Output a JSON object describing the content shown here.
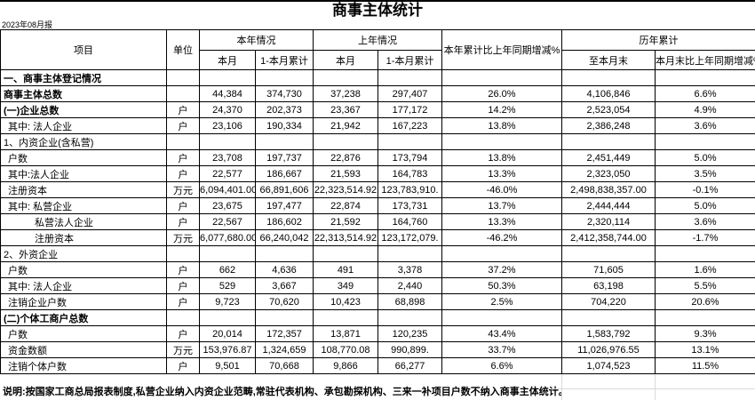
{
  "page": {
    "title": "商事主体统计",
    "period": "2023年08月报",
    "note": "说明:按国家工商总局报表制度,私营企业纳入内资企业范畴,常驻代表机构、承包勘探机构、三来一补项目户数不纳入商事主体统计。"
  },
  "colors": {
    "border": "#000000",
    "faint_grid": "#d9d9d9",
    "background": "#ffffff",
    "text": "#000000"
  },
  "table": {
    "header": {
      "item": "项目",
      "unit": "单位",
      "group_this_year": "本年情况",
      "group_last_year": "上年情况",
      "yoy_change": "本年累计比上年同期增减%",
      "group_history": "历年累计",
      "this_month": "本月",
      "cum_to_month": "1-本月累计",
      "to_month_end": "至本月末",
      "month_end_yoy": "本月末比上年同期增减%"
    },
    "rows": [
      {
        "label": "一、商事主体登记情况",
        "bold": true,
        "indent": 0,
        "unit": "",
        "values": [
          "",
          "",
          "",
          "",
          "",
          "",
          ""
        ]
      },
      {
        "label": "商事主体总数",
        "bold": true,
        "indent": 0,
        "unit": "",
        "values": [
          "44,384",
          "374,730",
          "37,238",
          "297,407",
          "26.0%",
          "4,106,846",
          "6.6%"
        ]
      },
      {
        "label": "(一)企业总数",
        "bold": true,
        "indent": 0,
        "unit": "户",
        "values": [
          "24,370",
          "202,373",
          "23,367",
          "177,172",
          "14.2%",
          "2,523,054",
          "4.9%"
        ]
      },
      {
        "label": "其中: 法人企业",
        "bold": false,
        "indent": 1,
        "unit": "户",
        "values": [
          "23,106",
          "190,334",
          "21,942",
          "167,223",
          "13.8%",
          "2,386,248",
          "3.6%"
        ]
      },
      {
        "label": "1、内资企业(含私营)",
        "bold": false,
        "indent": 0,
        "unit": "",
        "values": [
          "",
          "",
          "",
          "",
          "",
          "",
          ""
        ]
      },
      {
        "label": "户数",
        "bold": false,
        "indent": 1,
        "unit": "户",
        "values": [
          "23,708",
          "197,737",
          "22,876",
          "173,794",
          "13.8%",
          "2,451,449",
          "5.0%"
        ]
      },
      {
        "label": "其中:法人企业",
        "bold": false,
        "indent": 1,
        "unit": "户",
        "values": [
          "22,577",
          "186,667",
          "21,593",
          "164,783",
          "13.3%",
          "2,323,050",
          "3.5%"
        ]
      },
      {
        "label": "注册资本",
        "bold": false,
        "indent": 1,
        "unit": "万元",
        "values": [
          "6,094,401.00",
          "66,891,606",
          "22,323,514.92",
          "123,783,910.",
          "-46.0%",
          "2,498,838,357.00",
          "-0.1%"
        ]
      },
      {
        "label": "其中: 私营企业",
        "bold": false,
        "indent": 1,
        "unit": "户",
        "values": [
          "23,675",
          "197,477",
          "22,874",
          "173,731",
          "13.7%",
          "2,444,444",
          "5.0%"
        ]
      },
      {
        "label": "私营法人企业",
        "bold": false,
        "indent": 2,
        "unit": "户",
        "values": [
          "22,567",
          "186,602",
          "21,592",
          "164,760",
          "13.3%",
          "2,320,114",
          "3.6%"
        ]
      },
      {
        "label": "注册资本",
        "bold": false,
        "indent": 2,
        "unit": "万元",
        "values": [
          "6,077,680.00",
          "66,240,042",
          "22,313,514.92",
          "123,172,079.",
          "-46.2%",
          "2,412,358,744.00",
          "-1.7%"
        ]
      },
      {
        "label": "2、外资企业",
        "bold": false,
        "indent": 0,
        "unit": "",
        "values": [
          "",
          "",
          "",
          "",
          "",
          "",
          ""
        ]
      },
      {
        "label": "户数",
        "bold": false,
        "indent": 1,
        "unit": "户",
        "values": [
          "662",
          "4,636",
          "491",
          "3,378",
          "37.2%",
          "71,605",
          "1.6%"
        ]
      },
      {
        "label": "其中: 法人企业",
        "bold": false,
        "indent": 1,
        "unit": "户",
        "values": [
          "529",
          "3,667",
          "349",
          "2,440",
          "50.3%",
          "63,198",
          "5.5%"
        ]
      },
      {
        "label": "注销企业户数",
        "bold": false,
        "indent": 1,
        "unit": "户",
        "values": [
          "9,723",
          "70,620",
          "10,423",
          "68,898",
          "2.5%",
          "704,220",
          "20.6%"
        ]
      },
      {
        "label": "(二)个体工商户总数",
        "bold": true,
        "indent": 0,
        "unit": "",
        "values": [
          "",
          "",
          "",
          "",
          "",
          "",
          ""
        ]
      },
      {
        "label": "户数",
        "bold": false,
        "indent": 1,
        "unit": "户",
        "values": [
          "20,014",
          "172,357",
          "13,871",
          "120,235",
          "43.4%",
          "1,583,792",
          "9.3%"
        ]
      },
      {
        "label": "资金数额",
        "bold": false,
        "indent": 1,
        "unit": "万元",
        "values": [
          "153,976.87",
          "1,324,659",
          "108,770.08",
          "990,899.",
          "33.7%",
          "11,026,976.55",
          "13.1%"
        ]
      },
      {
        "label": "注销个体户数",
        "bold": false,
        "indent": 1,
        "unit": "户",
        "values": [
          "9,501",
          "70,668",
          "9,866",
          "66,277",
          "6.6%",
          "1,074,523",
          "11.5%"
        ]
      }
    ]
  }
}
